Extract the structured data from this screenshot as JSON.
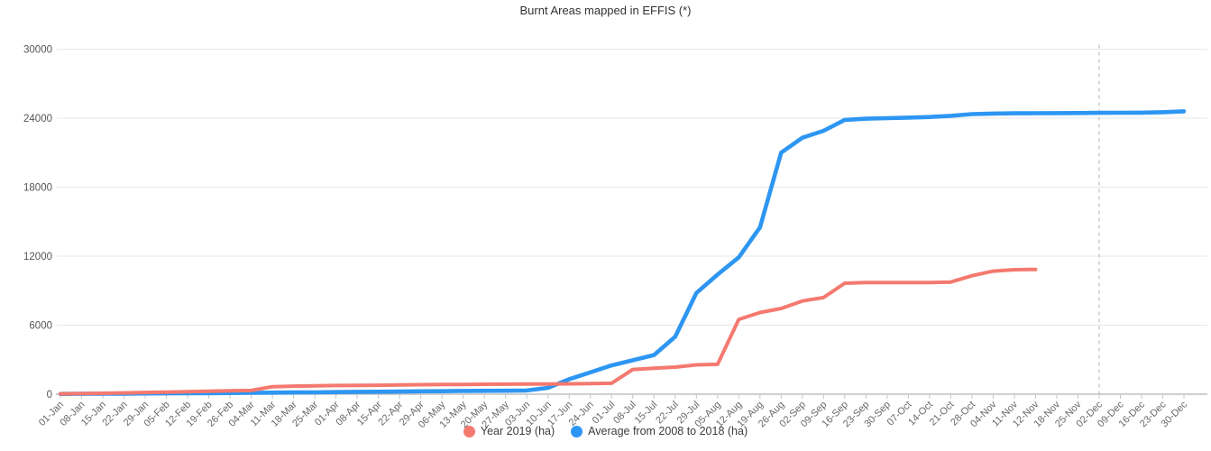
{
  "header": {
    "title": "Burnt Areas mapped in EFFIS (*)"
  },
  "chart_data": {
    "type": "line",
    "title": "Burnt Areas mapped in EFFIS (*)",
    "xlabel": "",
    "ylabel": "",
    "ylim": [
      0,
      30000
    ],
    "yticks": [
      0,
      6000,
      12000,
      18000,
      24000,
      30000
    ],
    "grid": true,
    "legend_position": "bottom",
    "categories": [
      "01-Jan",
      "08-Jan",
      "15-Jan",
      "22-Jan",
      "29-Jan",
      "05-Feb",
      "12-Feb",
      "19-Feb",
      "26-Feb",
      "04-Mar",
      "11-Mar",
      "18-Mar",
      "25-Mar",
      "01-Apr",
      "08-Apr",
      "15-Apr",
      "22-Apr",
      "29-Apr",
      "06-May",
      "13-May",
      "20-May",
      "27-May",
      "03-Jun",
      "10-Jun",
      "17-Jun",
      "24-Jun",
      "01-Jul",
      "08-Jul",
      "15-Jul",
      "22-Jul",
      "29-Jul",
      "05-Aug",
      "12-Aug",
      "19-Aug",
      "26-Aug",
      "02-Sep",
      "09-Sep",
      "16-Sep",
      "23-Sep",
      "30-Sep",
      "07-Oct",
      "14-Oct",
      "21-Oct",
      "28-Oct",
      "04-Nov",
      "11-Nov",
      "12-Nov",
      "18-Nov",
      "25-Nov",
      "02-Dec",
      "09-Dec",
      "16-Dec",
      "23-Dec",
      "30-Dec"
    ],
    "series": [
      {
        "name": "Year 2019 (ha)",
        "color": "#f4796f",
        "values": [
          30,
          50,
          80,
          110,
          150,
          180,
          220,
          260,
          290,
          320,
          650,
          700,
          720,
          750,
          760,
          780,
          800,
          820,
          840,
          850,
          860,
          870,
          880,
          890,
          900,
          920,
          950,
          2150,
          2250,
          2350,
          2550,
          2600,
          6500,
          7100,
          7450,
          8100,
          8400,
          9650,
          9700,
          9700,
          9700,
          9700,
          9750,
          10300,
          10700,
          10820,
          10850,
          null,
          null,
          null,
          null,
          null,
          null,
          null
        ]
      },
      {
        "name": "Average from 2008 to 2018 (ha)",
        "color": "#2d96f2",
        "values": [
          20,
          30,
          40,
          50,
          60,
          70,
          80,
          90,
          100,
          120,
          130,
          150,
          160,
          180,
          200,
          210,
          230,
          250,
          260,
          280,
          290,
          300,
          320,
          550,
          1300,
          1900,
          2500,
          2950,
          3400,
          5000,
          8800,
          10400,
          11900,
          14500,
          21000,
          22300,
          22900,
          23850,
          23950,
          24000,
          24050,
          24100,
          24200,
          24350,
          24400,
          24420,
          24430,
          24440,
          24450,
          24460,
          24470,
          24480,
          24520,
          24600
        ]
      }
    ],
    "annotations": {
      "vertical_dashed_line_at": "02-Dec"
    },
    "style_colors": {
      "gridline": "#e7e7e7",
      "axis_line": "#b5b5b5",
      "tick_mark": "#c4c4c4",
      "dashed_line": "#cccccc",
      "y_label": "#545454",
      "x_label": "#686868"
    }
  }
}
